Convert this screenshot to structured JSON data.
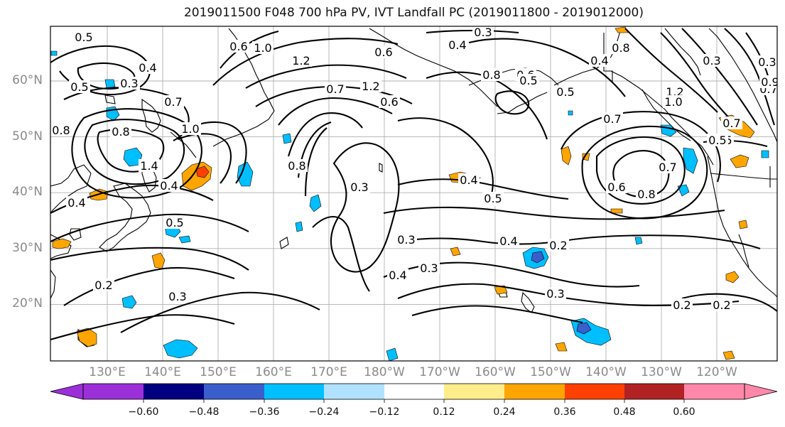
{
  "title": "2019011500 F048 700 hPa PV, IVT Landfall PC (2019011800 - 2019012000)",
  "latitudes": [
    {
      "value": 60,
      "label": "60°N"
    },
    {
      "value": 50,
      "label": "50°N"
    },
    {
      "value": 40,
      "label": "40°N"
    },
    {
      "value": 30,
      "label": "30°N"
    },
    {
      "value": 20,
      "label": "20°N"
    }
  ],
  "longitudes": [
    {
      "value": 130,
      "label": "130°E"
    },
    {
      "value": 140,
      "label": "140°E"
    },
    {
      "value": 150,
      "label": "150°E"
    },
    {
      "value": 160,
      "label": "160°E"
    },
    {
      "value": 170,
      "label": "170°E"
    },
    {
      "value": 180,
      "label": "180°W"
    },
    {
      "value": 190,
      "label": "170°W"
    },
    {
      "value": 200,
      "label": "160°W"
    },
    {
      "value": 210,
      "label": "150°W"
    },
    {
      "value": 220,
      "label": "140°W"
    },
    {
      "value": 230,
      "label": "130°W"
    },
    {
      "value": 240,
      "label": "120°W"
    }
  ],
  "colorbar": {
    "colors": [
      "#9b30d9",
      "#000080",
      "#3a5fcd",
      "#00bfff",
      "#b0e2ff",
      "#ffffff",
      "#ffec8b",
      "#ffa500",
      "#ff4000",
      "#b22222",
      "#ff88aa"
    ],
    "ticks": [
      "−0.60",
      "−0.48",
      "−0.36",
      "−0.24",
      "−0.12",
      "0.12",
      "0.24",
      "0.36",
      "0.48",
      "0.60"
    ]
  },
  "contour_labels": [
    "0.5",
    "0.3",
    "0.4",
    "0.5",
    "0.6",
    "1.0",
    "1.2",
    "0.3",
    "0.4",
    "0.6",
    "0.8",
    "0.6",
    "0.7",
    "1.2",
    "0.6",
    "0.5",
    "0.4",
    "0.8",
    "1.2",
    "1.0",
    "0.7",
    "0.3",
    "0.3",
    "0.7",
    "0.5",
    "0.9",
    "0.7",
    "0.8",
    "0.7",
    "1.0",
    "0.8",
    "1.4",
    "0.4",
    "0.4",
    "0.5",
    "0.8",
    "0.3",
    "0.4",
    "0.5",
    "0.6",
    "0.7",
    "0.8",
    "0.3",
    "0.4",
    "0.3",
    "0.4",
    "0.2",
    "0.3",
    "0.2",
    "0.3",
    "0.2",
    "0.2",
    "0.5",
    "0.5",
    "0.5",
    "0.8"
  ]
}
